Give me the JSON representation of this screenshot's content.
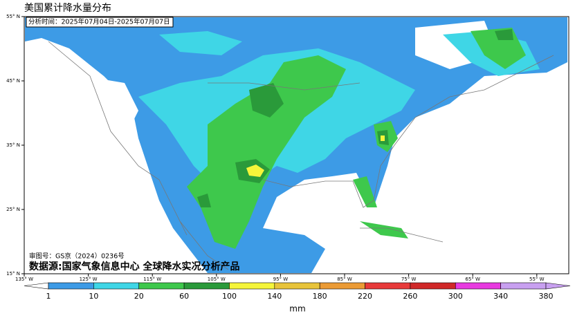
{
  "header": {
    "title": "美国累计降水量分布",
    "time": "分析时间：2025年07月04日-2025年07月07日"
  },
  "map": {
    "lat_labels": [
      "55° N",
      "45° N",
      "35° N",
      "25° N",
      "15° N"
    ],
    "lon_labels": [
      "135° W",
      "125° W",
      "115° W",
      "105° W",
      "95° W",
      "85° W",
      "75° W",
      "65° W",
      "55° W"
    ],
    "review_no": "审图号：GS京（2024）0236号",
    "source": "数据源:国家气象信息中心 全球降水实况分析产品"
  },
  "legend": {
    "ticks": [
      1,
      10,
      20,
      60,
      100,
      140,
      180,
      220,
      260,
      300,
      340,
      380
    ],
    "colors": [
      "#ffffff",
      "#3d9be6",
      "#3fd6e6",
      "#3ec84c",
      "#2a9a3a",
      "#f5f53a",
      "#e8c43a",
      "#eb9b35",
      "#e83a3a",
      "#d02828",
      "#e83ae0",
      "#c8a0f0",
      "#c8a0f0"
    ],
    "unit": "mm"
  }
}
